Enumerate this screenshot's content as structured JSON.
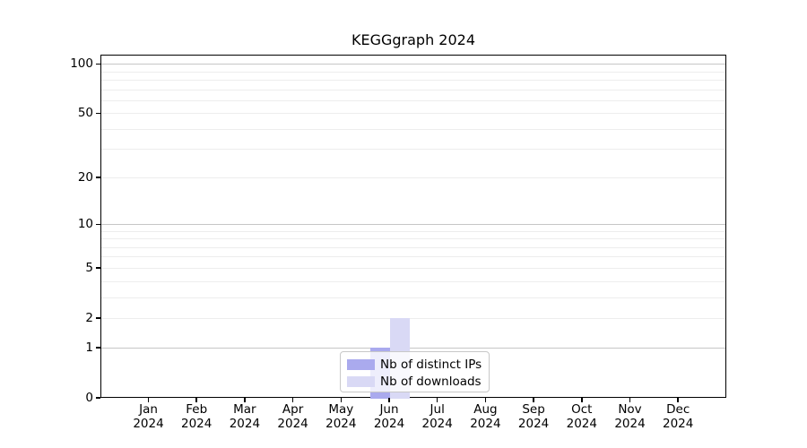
{
  "chart_data": {
    "type": "bar",
    "title": "KEGGgraph 2024",
    "categories": [
      "Jan 2024",
      "Feb 2024",
      "Mar 2024",
      "Apr 2024",
      "May 2024",
      "Jun 2024",
      "Jul 2024",
      "Aug 2024",
      "Sep 2024",
      "Oct 2024",
      "Nov 2024",
      "Dec 2024"
    ],
    "series": [
      {
        "name": "Nb of distinct IPs",
        "color": "#aaaaee",
        "values": [
          0,
          0,
          0,
          0,
          0,
          1,
          0,
          0,
          0,
          0,
          0,
          0
        ]
      },
      {
        "name": "Nb of downloads",
        "color": "#d9d9f5",
        "values": [
          0,
          0,
          0,
          0,
          0,
          2,
          0,
          0,
          0,
          0,
          0,
          0
        ]
      }
    ],
    "xlabel": "",
    "ylabel": "",
    "yscale": "log10(1+x)",
    "ylim": [
      0,
      113
    ],
    "yticks": [
      0,
      1,
      2,
      5,
      10,
      20,
      50,
      100
    ],
    "major_gridlines": [
      1,
      10,
      100
    ],
    "minor_gridlines": [
      2,
      3,
      4,
      5,
      6,
      7,
      8,
      9,
      20,
      30,
      40,
      50,
      60,
      70,
      80,
      90
    ],
    "grid": "horizontal",
    "legend_position": "lower center",
    "colors": {
      "axis": "#000000",
      "grid_minor": "#ededed",
      "grid_major": "#c6c6c6",
      "legend_border": "#c8c8c8",
      "background": "#ffffff"
    }
  },
  "legend": {
    "items": [
      {
        "label": "Nb of distinct IPs",
        "color": "#aaaaee"
      },
      {
        "label": "Nb of downloads",
        "color": "#d9d9f5"
      }
    ]
  }
}
